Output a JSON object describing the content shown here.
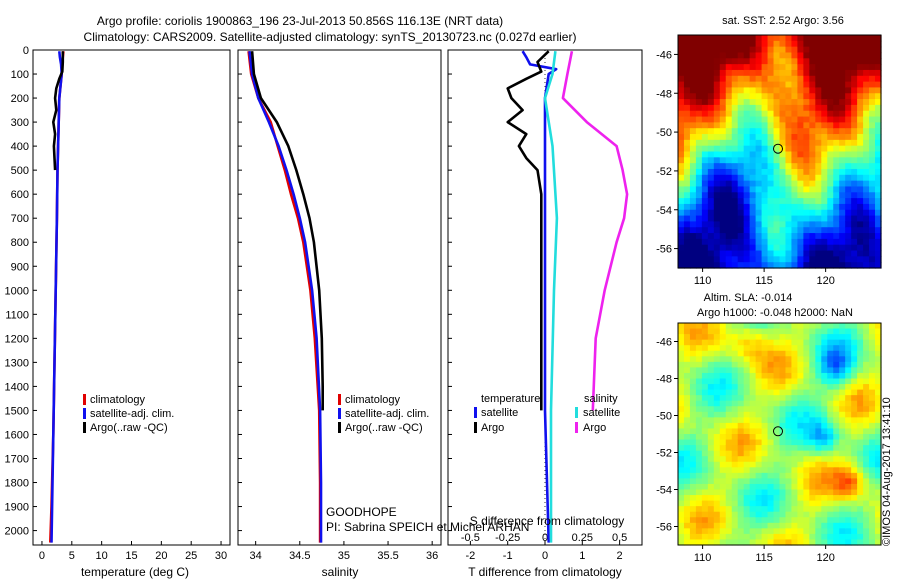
{
  "header": {
    "title_line1": "Argo profile: coriolis 1900863_196 23-Jul-2013 50.856S 116.13E (NRT data)",
    "title_line2": "Climatology: CARS2009. Satellite-adjusted climatology: synTS_20130723.nc (0.027d earlier)"
  },
  "colors": {
    "climatology": "#e00000",
    "satellite_adj": "#1010ee",
    "argo": "#000000",
    "sat_salinity": "#22dddd",
    "argo_salinity": "#ee22ee"
  },
  "legends": {
    "temp": [
      "climatology",
      "satellite-adj. clim.",
      "Argo(..raw -QC)"
    ],
    "sal": [
      "climatology",
      "satellite-adj. clim.",
      "Argo(..raw -QC)"
    ],
    "diff": {
      "temp_head": "temperature",
      "sal_head": "salinity",
      "temp_items": [
        "satellite",
        "Argo"
      ],
      "sal_items": [
        "satellite",
        "Argo"
      ]
    }
  },
  "annotations": {
    "goodhope": "GOODHOPE",
    "pi": "PI: Sabrina SPEICH et Michel ARHAN",
    "s_diff_label": "S difference from climatology",
    "map1_title": "sat. SST: 2.52  Argo: 3.56",
    "map2_title_1": "Altim. SLA: -0.014",
    "map2_title_2": "Argo h1000: -0.048 h2000: NaN",
    "imos": "©IMOS 04-Aug-2017 13:41:10"
  },
  "chart_data": [
    {
      "type": "line",
      "name": "temperature",
      "xlabel": "temperature (deg C)",
      "ylabel": "",
      "xlim": [
        -1.5,
        31.5
      ],
      "ylim": [
        2060,
        0
      ],
      "xticks": [
        0,
        5,
        10,
        15,
        20,
        25,
        30
      ],
      "yticks": [
        0,
        100,
        200,
        300,
        400,
        500,
        600,
        700,
        800,
        900,
        1000,
        1100,
        1200,
        1300,
        1400,
        1500,
        1600,
        1700,
        1800,
        1900,
        2000
      ],
      "series": [
        {
          "name": "climatology",
          "y": [
            5,
            30,
            60,
            100,
            150,
            200,
            300,
            400,
            500,
            700,
            1000,
            1300,
            1600,
            1900,
            2050
          ],
          "x": [
            3.6,
            3.5,
            3.4,
            3.3,
            3.1,
            2.9,
            2.8,
            2.7,
            2.6,
            2.5,
            2.3,
            2.1,
            1.9,
            1.6,
            1.4
          ]
        },
        {
          "name": "satellite-adj. clim.",
          "y": [
            5,
            30,
            60,
            100,
            150,
            200,
            300,
            400,
            500,
            700,
            1000,
            1300,
            1600,
            1900,
            2050
          ],
          "x": [
            2.9,
            3.0,
            3.2,
            3.3,
            3.1,
            2.9,
            2.8,
            2.7,
            2.6,
            2.5,
            2.3,
            2.1,
            1.9,
            1.7,
            1.6
          ]
        },
        {
          "name": "Argo(..raw -QC)",
          "y": [
            5,
            50,
            90,
            120,
            160,
            200,
            250,
            300,
            350,
            400,
            450,
            500
          ],
          "x": [
            3.5,
            3.5,
            3.4,
            2.9,
            2.4,
            2.2,
            2.4,
            1.9,
            2.2,
            2.0,
            2.1,
            2.2
          ]
        }
      ]
    },
    {
      "type": "line",
      "name": "salinity",
      "xlabel": "salinity",
      "ylabel": "",
      "xlim": [
        33.8,
        36.1
      ],
      "ylim": [
        2060,
        0
      ],
      "xticks": [
        34,
        34.5,
        35,
        35.5,
        36
      ],
      "series": [
        {
          "name": "climatology",
          "y": [
            5,
            100,
            200,
            300,
            400,
            500,
            600,
            700,
            800,
            1000,
            1200,
            1500,
            1800,
            2050
          ],
          "x": [
            33.92,
            33.95,
            34.03,
            34.17,
            34.25,
            34.33,
            34.4,
            34.48,
            34.54,
            34.62,
            34.67,
            34.72,
            34.73,
            34.73
          ]
        },
        {
          "name": "satellite-adj. clim.",
          "y": [
            5,
            100,
            200,
            300,
            400,
            500,
            600,
            700,
            800,
            1000,
            1200,
            1500,
            1800,
            2050
          ],
          "x": [
            33.93,
            33.96,
            34.03,
            34.15,
            34.26,
            34.35,
            34.43,
            34.5,
            34.56,
            34.64,
            34.69,
            34.73,
            34.74,
            34.74
          ]
        },
        {
          "name": "Argo(..raw -QC)",
          "y": [
            5,
            100,
            200,
            300,
            400,
            500,
            600,
            700,
            800,
            1000,
            1200,
            1400,
            1500
          ],
          "x": [
            33.96,
            33.98,
            34.06,
            34.24,
            34.37,
            34.46,
            34.54,
            34.61,
            34.66,
            34.72,
            34.75,
            34.76,
            34.76
          ]
        }
      ]
    },
    {
      "type": "line",
      "name": "difference",
      "xlabel": "T difference from climatology",
      "top_axis_label": "S difference from climatology",
      "xlim": [
        -2.6,
        2.6
      ],
      "ylim": [
        2060,
        0
      ],
      "xticks": [
        -2,
        -1,
        0,
        1,
        2
      ],
      "top_ticks": [
        "-0.5",
        "-0.25",
        "0",
        "0.25",
        "0.5"
      ],
      "series": [
        {
          "name": "T satellite",
          "y": [
            5,
            30,
            60,
            80,
            100,
            200,
            400,
            700,
            1000,
            1500,
            2050
          ],
          "x": [
            -0.6,
            -0.5,
            -0.4,
            0.3,
            0.1,
            0.0,
            0.0,
            0.0,
            0.0,
            0.0,
            0.1
          ]
        },
        {
          "name": "T Argo",
          "y": [
            5,
            50,
            90,
            120,
            160,
            200,
            250,
            300,
            350,
            400,
            450,
            500,
            600,
            800,
            1000,
            1200,
            1500
          ],
          "x": [
            0.1,
            -0.2,
            -0.1,
            -0.5,
            -1.0,
            -0.9,
            -0.6,
            -1.0,
            -0.5,
            -0.7,
            -0.5,
            -0.2,
            -0.1,
            -0.1,
            -0.1,
            -0.1,
            -0.1
          ]
        },
        {
          "name": "S satellite",
          "y": [
            5,
            100,
            200,
            400,
            700,
            1000,
            1500,
            2050
          ],
          "x": [
            0.07,
            0.05,
            0.0,
            0.05,
            0.08,
            0.06,
            0.04,
            0.04
          ]
        },
        {
          "name": "S Argo",
          "y": [
            5,
            100,
            200,
            300,
            400,
            500,
            600,
            700,
            800,
            1000,
            1200,
            1500
          ],
          "x": [
            0.18,
            0.15,
            0.12,
            0.28,
            0.48,
            0.52,
            0.55,
            0.53,
            0.48,
            0.4,
            0.34,
            0.32
          ]
        }
      ]
    },
    {
      "type": "heatmap",
      "name": "sat. SST map",
      "xticks": [
        110,
        115,
        120
      ],
      "yticks": [
        -46,
        -48,
        -50,
        -52,
        -54,
        -56
      ],
      "xlim": [
        108,
        124.5
      ],
      "ylim": [
        -57,
        -45
      ],
      "marker": {
        "lon": 116.13,
        "lat": -50.856
      }
    },
    {
      "type": "heatmap",
      "name": "Altim. SLA map",
      "xticks": [
        110,
        115,
        120
      ],
      "yticks": [
        -46,
        -48,
        -50,
        -52,
        -54,
        -56
      ],
      "xlim": [
        108,
        124.5
      ],
      "ylim": [
        -57,
        -45
      ],
      "marker": {
        "lon": 116.13,
        "lat": -50.856
      }
    }
  ]
}
